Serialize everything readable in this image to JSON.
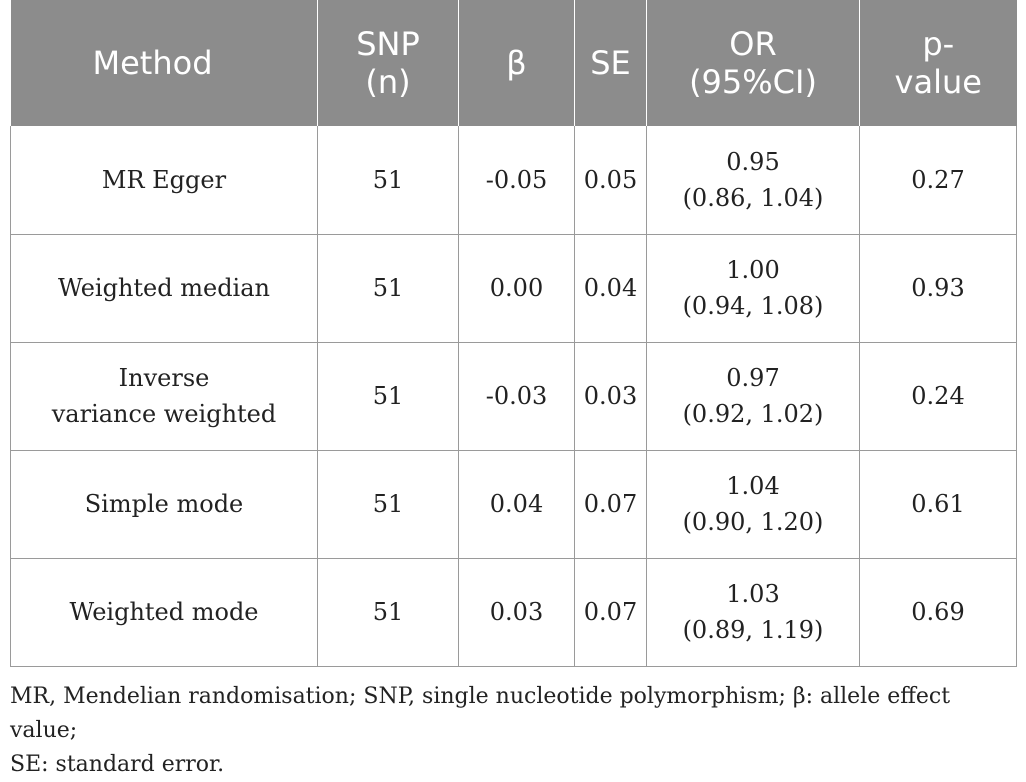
{
  "table": {
    "headers": [
      [
        "Method"
      ],
      [
        "SNP",
        "(n)"
      ],
      [
        "β"
      ],
      [
        "SE"
      ],
      [
        "OR",
        "(95%CI)"
      ],
      [
        "p-",
        "value"
      ]
    ],
    "rows": [
      {
        "method": [
          "MR Egger"
        ],
        "snp": "51",
        "beta": "-0.05",
        "se": "0.05",
        "or": [
          "0.95",
          "(0.86, 1.04)"
        ],
        "p": "0.27"
      },
      {
        "method": [
          "Weighted median"
        ],
        "snp": "51",
        "beta": "0.00",
        "se": "0.04",
        "or": [
          "1.00",
          "(0.94, 1.08)"
        ],
        "p": "0.93"
      },
      {
        "method": [
          "Inverse",
          "variance weighted"
        ],
        "snp": "51",
        "beta": "-0.03",
        "se": "0.03",
        "or": [
          "0.97",
          "(0.92, 1.02)"
        ],
        "p": "0.24"
      },
      {
        "method": [
          "Simple mode"
        ],
        "snp": "51",
        "beta": "0.04",
        "se": "0.07",
        "or": [
          "1.04",
          "(0.90, 1.20)"
        ],
        "p": "0.61"
      },
      {
        "method": [
          "Weighted mode"
        ],
        "snp": "51",
        "beta": "0.03",
        "se": "0.07",
        "or": [
          "1.03",
          "(0.89, 1.19)"
        ],
        "p": "0.69"
      }
    ]
  },
  "footnote": {
    "line1": "MR, Mendelian randomisation; SNP, single nucleotide polymorphism; β: allele effect value;",
    "line2": "SE: standard error."
  },
  "colors": {
    "header_bg": "#8c8c8c",
    "header_text": "#ffffff",
    "grid": "#9a9a9a"
  }
}
